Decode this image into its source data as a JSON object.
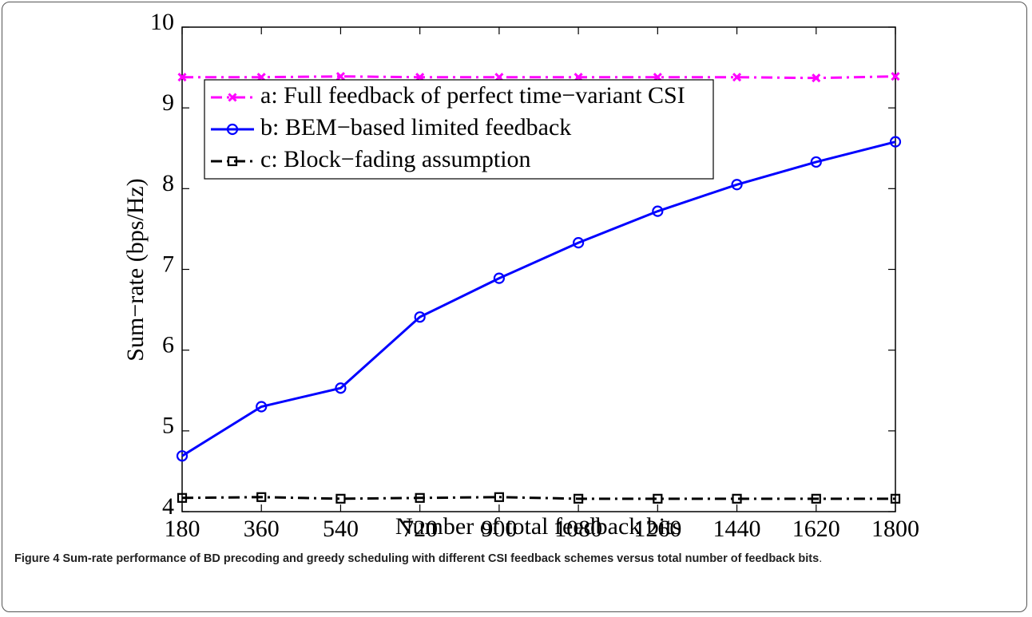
{
  "chart_data": {
    "type": "line",
    "xlabel": "Number of total feedback bits",
    "ylabel": "Sum−rate (bps/Hz)",
    "x": [
      180,
      360,
      540,
      720,
      900,
      1080,
      1260,
      1440,
      1620,
      1800
    ],
    "xlim": [
      180,
      1800
    ],
    "xticks": [
      180,
      360,
      540,
      720,
      900,
      1080,
      1260,
      1440,
      1620,
      1800
    ],
    "ylim": [
      4,
      10
    ],
    "yticks": [
      4,
      5,
      6,
      7,
      8,
      9,
      10
    ],
    "legend": "upper left",
    "series": [
      {
        "name": "a: Full feedback of perfect time−variant CSI",
        "color": "#ff00ff",
        "marker": "x",
        "linestyle": "dashdot",
        "values": [
          9.38,
          9.38,
          9.39,
          9.38,
          9.38,
          9.38,
          9.38,
          9.38,
          9.37,
          9.39
        ]
      },
      {
        "name": "b: BEM−based limited feedback",
        "color": "#0000ff",
        "marker": "o",
        "linestyle": "solid",
        "values": [
          4.69,
          5.3,
          5.53,
          6.41,
          6.89,
          7.33,
          7.72,
          8.05,
          8.33,
          8.58
        ]
      },
      {
        "name": "c: Block−fading assumption",
        "color": "#000000",
        "marker": "s",
        "linestyle": "dashdot",
        "values": [
          4.17,
          4.18,
          4.16,
          4.17,
          4.18,
          4.16,
          4.16,
          4.16,
          4.16,
          4.16
        ]
      }
    ]
  },
  "caption_label": "Figure 4",
  "caption": "Sum-rate performance of BD precoding and greedy scheduling with different CSI feedback schemes versus total number of feedback bits",
  "caption_end": "."
}
